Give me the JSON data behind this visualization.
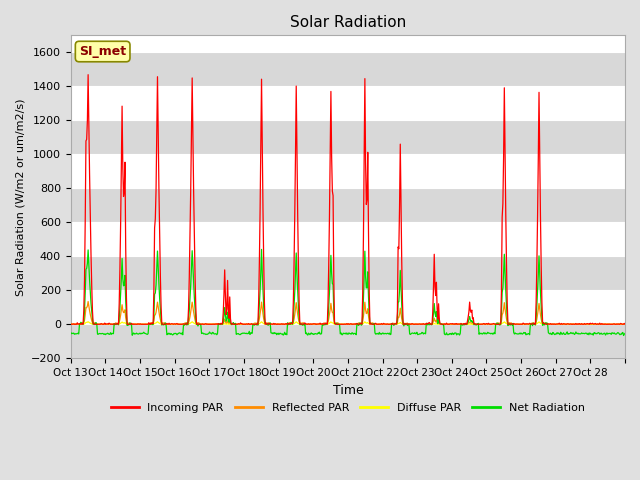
{
  "title": "Solar Radiation",
  "ylabel": "Solar Radiation (W/m2 or um/m2/s)",
  "xlabel": "Time",
  "ylim": [
    -200,
    1700
  ],
  "fig_bg_color": "#e0e0e0",
  "plot_bg_color": "#ffffff",
  "site_label": "SI_met",
  "x_tick_labels": [
    "Oct 13",
    "Oct 14",
    "Oct 15",
    "Oct 16",
    "Oct 17",
    "Oct 18",
    "Oct 19",
    "Oct 20",
    "Oct 21",
    "Oct 22",
    "Oct 23",
    "Oct 24",
    "Oct 25",
    "Oct 26",
    "Oct 27",
    "Oct 28"
  ],
  "colors": {
    "incoming": "#ff0000",
    "reflected": "#ff8c00",
    "diffuse": "#ffff00",
    "net": "#00dd00"
  },
  "legend_labels": [
    "Incoming PAR",
    "Reflected PAR",
    "Diffuse PAR",
    "Net Radiation"
  ],
  "yticks": [
    -200,
    0,
    200,
    400,
    600,
    800,
    1000,
    1200,
    1400,
    1600
  ],
  "stripe_color": "#d8d8d8",
  "stripe_intervals": [
    [
      200,
      400
    ],
    [
      600,
      800
    ],
    [
      1000,
      1200
    ],
    [
      1400,
      1600
    ]
  ]
}
